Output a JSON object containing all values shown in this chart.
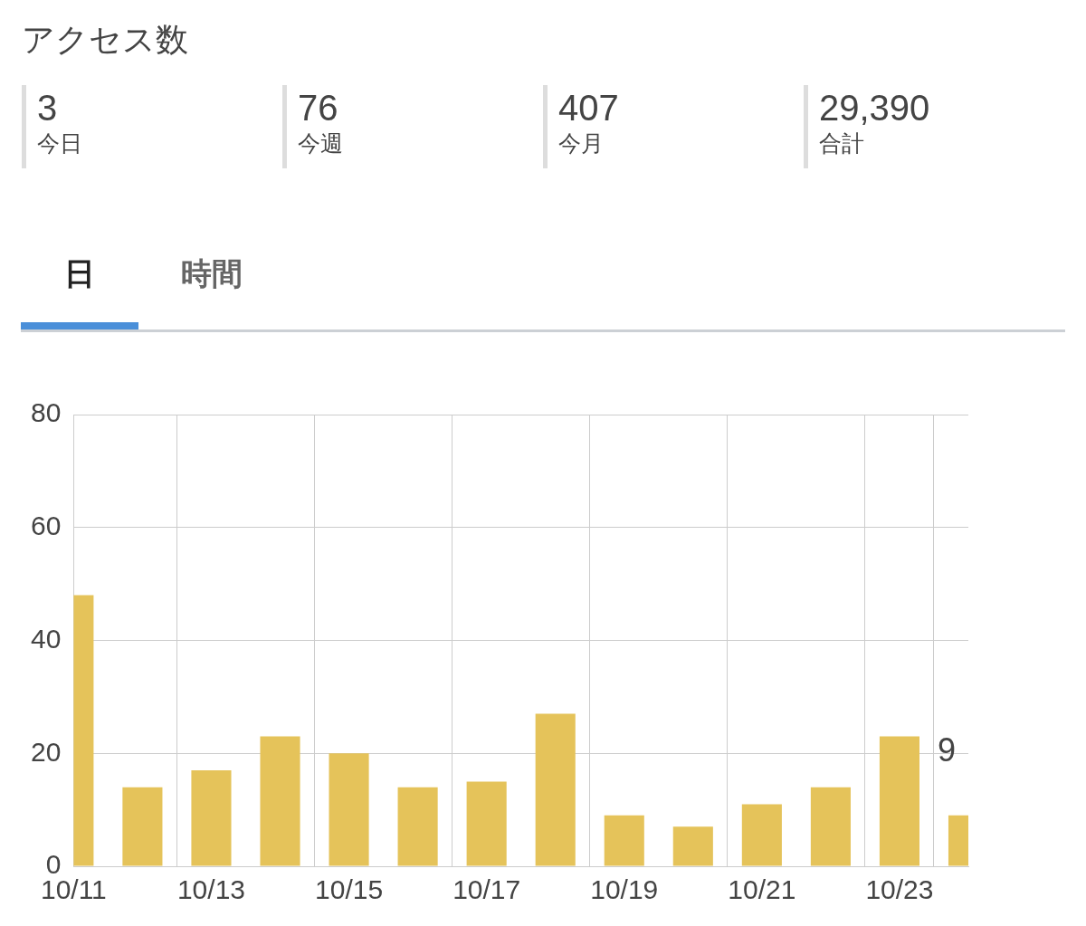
{
  "chart_data": [
    {
      "type": "other",
      "title": "アクセス数",
      "annotations": [
        "3",
        "今日",
        "76",
        "今週",
        "407",
        "今月",
        "29,390",
        "合計"
      ]
    },
    {
      "type": "bar",
      "annotations": [
        "日",
        "時間"
      ],
      "categories": [
        "10/11",
        null,
        "10/13",
        null,
        "10/15",
        null,
        "10/17",
        null,
        "10/19",
        null,
        "10/21",
        null,
        "10/23",
        null
      ],
      "values": [
        48,
        14,
        17,
        23,
        20,
        14,
        15,
        27,
        9,
        7,
        11,
        14,
        23,
        9
      ],
      "value_labels": [
        null,
        null,
        null,
        null,
        null,
        null,
        null,
        null,
        null,
        null,
        null,
        null,
        null,
        "9"
      ],
      "color": "#e5c35a",
      "ylim": [
        0,
        80
      ],
      "yticks": [
        0,
        20,
        40,
        60,
        80
      ],
      "grid": true
    }
  ]
}
